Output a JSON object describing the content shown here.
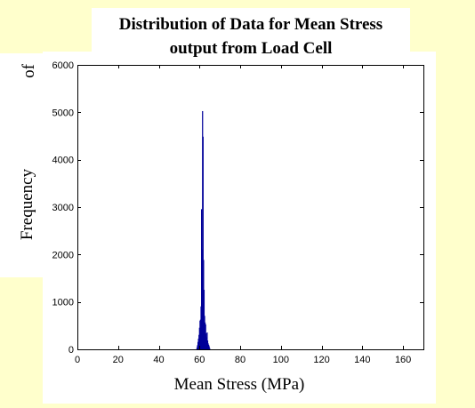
{
  "chart_data": {
    "type": "bar",
    "title_lines": [
      "Distribution of Data for Mean Stress",
      "output from Load Cell"
    ],
    "xlabel": "Mean Stress (MPa)",
    "ylabel": "Frequency",
    "ylabel_fragment": "of",
    "xlim": [
      0,
      170
    ],
    "ylim": [
      0,
      6000
    ],
    "x_ticks": [
      0,
      20,
      40,
      60,
      80,
      100,
      120,
      140,
      160
    ],
    "y_ticks": [
      0,
      1000,
      2000,
      3000,
      4000,
      5000,
      6000
    ],
    "bar_color": "#000099",
    "bin_width": 0.25,
    "x": [
      58.75,
      59.0,
      59.25,
      59.5,
      59.75,
      60.0,
      60.25,
      60.5,
      60.75,
      61.0,
      61.25,
      61.5,
      61.75,
      62.0,
      62.25,
      62.5,
      62.75,
      63.0,
      63.25,
      63.5,
      63.75,
      64.0,
      64.25,
      64.5,
      64.75,
      65.0
    ],
    "values": [
      30,
      80,
      150,
      220,
      300,
      450,
      600,
      620,
      900,
      2950,
      2100,
      5020,
      4480,
      1880,
      1250,
      700,
      560,
      520,
      330,
      250,
      350,
      180,
      120,
      90,
      60,
      20
    ],
    "grid": false,
    "legend": "none"
  }
}
